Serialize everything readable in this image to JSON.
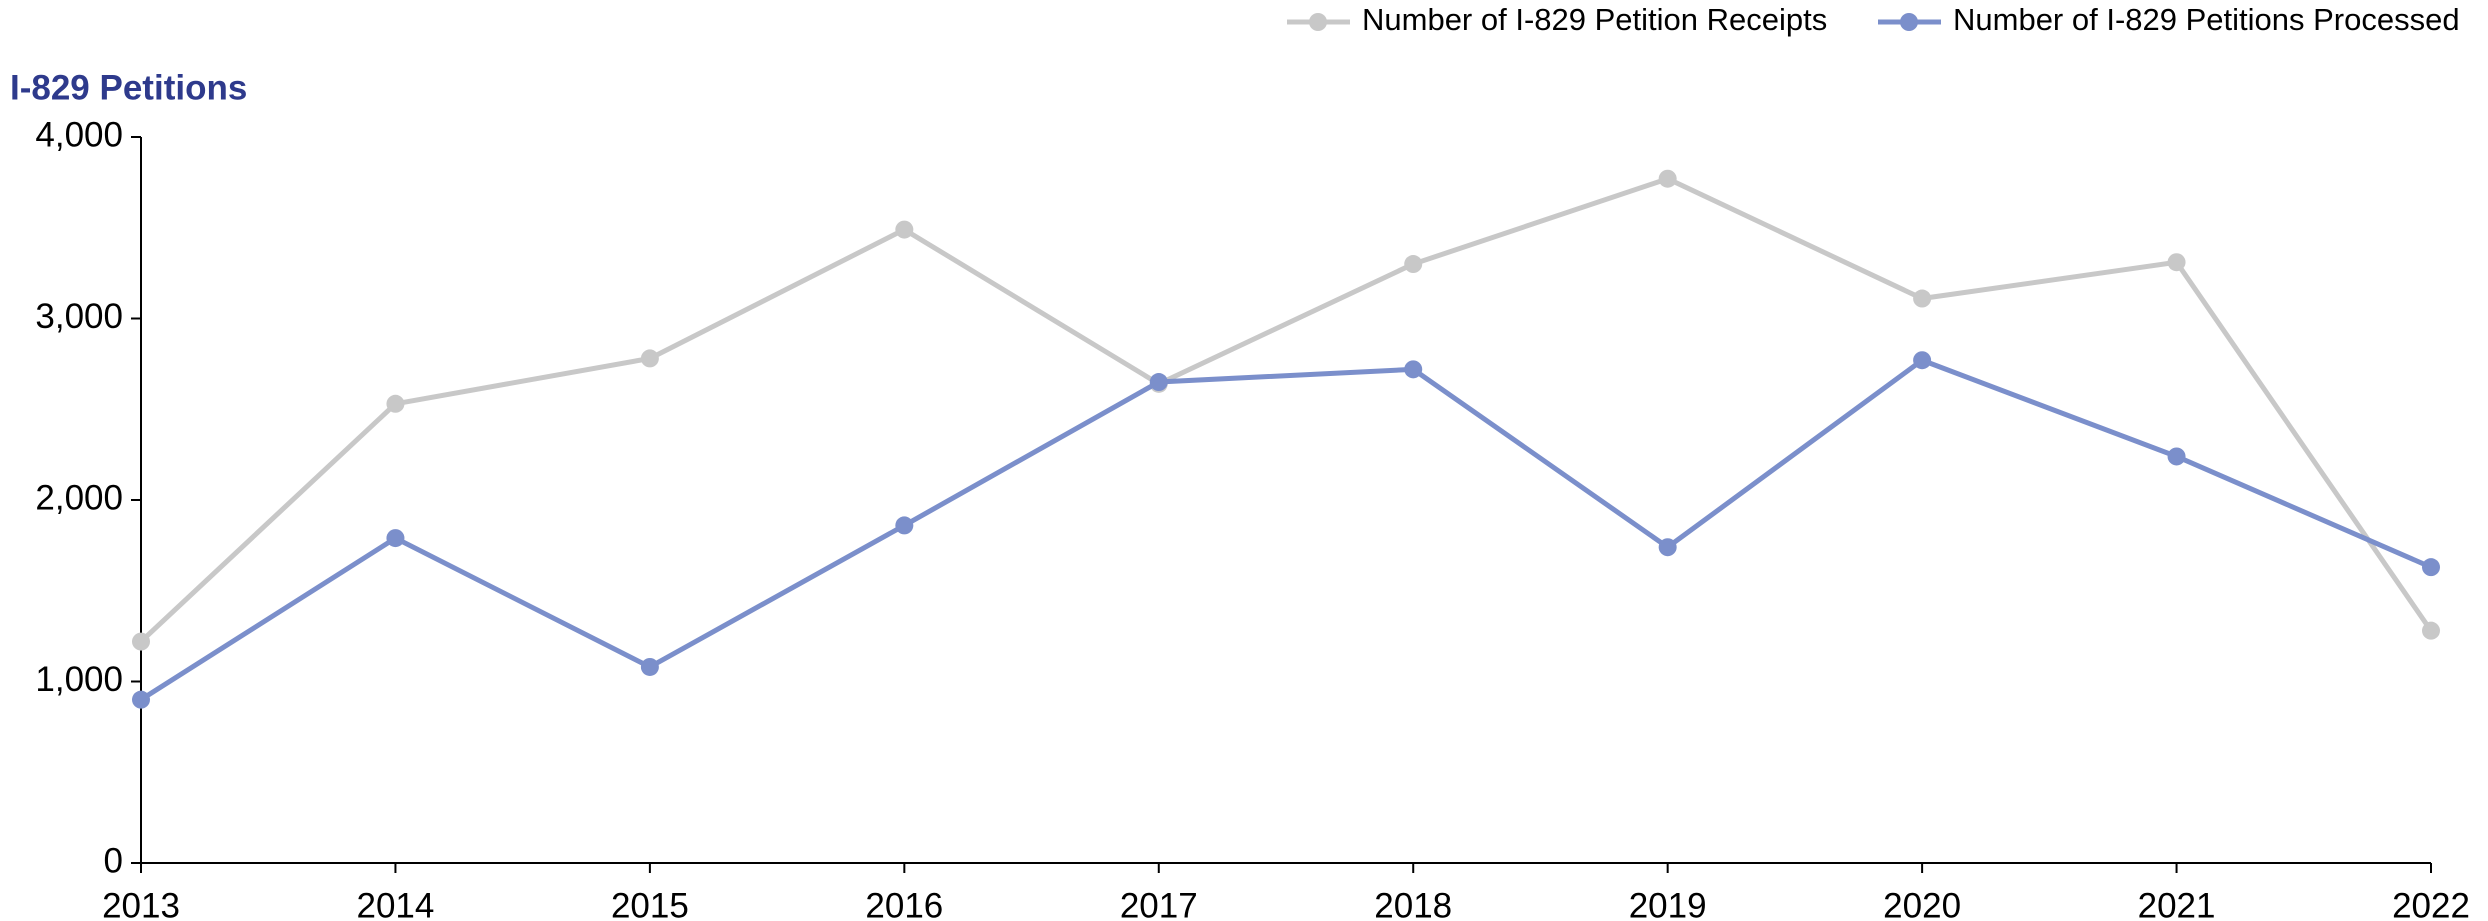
{
  "chart_data": {
    "type": "line",
    "title": "I-829 Petitions",
    "categories": [
      "2013",
      "2014",
      "2015",
      "2016",
      "2017",
      "2018",
      "2019",
      "2020",
      "2021",
      "2022"
    ],
    "series": [
      {
        "name": "Number of I-829 Petition Receipts",
        "color": "#c8c8c8",
        "values": [
          1220,
          2530,
          2780,
          3490,
          2640,
          3300,
          3770,
          3110,
          3310,
          1280
        ]
      },
      {
        "name": "Number of I-829 Petitions Processed",
        "color": "#7b8fcb",
        "values": [
          900,
          1790,
          1080,
          1860,
          2650,
          2720,
          1740,
          2770,
          2240,
          1630
        ]
      }
    ],
    "ylim": [
      0,
      4000
    ],
    "yticks": [
      0,
      {
        "value": 1000,
        "label": "1,000"
      },
      {
        "value": 2000,
        "label": "2,000"
      },
      {
        "value": 3000,
        "label": "3,000"
      },
      {
        "value": 4000,
        "label": "4,000"
      }
    ],
    "legend": "top-right",
    "grid": false
  }
}
